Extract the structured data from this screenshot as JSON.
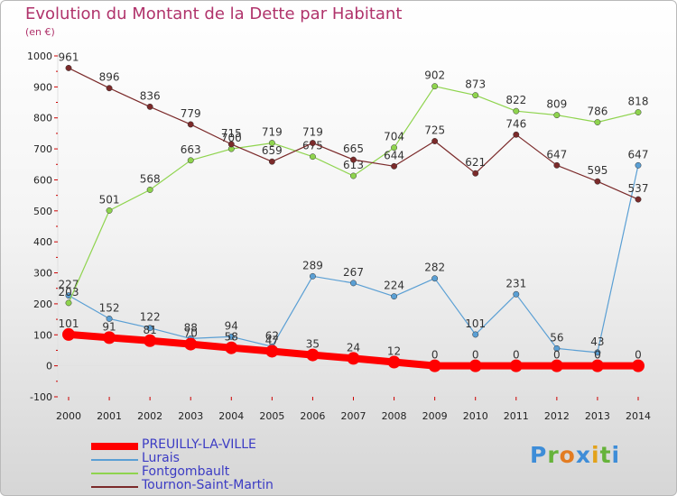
{
  "title": "Evolution du Montant de la Dette par Habitant",
  "unit": "(en €)",
  "brand": {
    "letters": [
      {
        "ch": "P",
        "color": "#3e8dd8"
      },
      {
        "ch": "r",
        "color": "#66b33a"
      },
      {
        "ch": "o",
        "color": "#e37c22"
      },
      {
        "ch": "x",
        "color": "#3e8dd8"
      },
      {
        "ch": "i",
        "color": "#e3a21a"
      },
      {
        "ch": "t",
        "color": "#66b33a"
      },
      {
        "ch": "i",
        "color": "#3e8dd8"
      }
    ]
  },
  "chart_data": {
    "type": "line",
    "title": "Evolution du Montant de la Dette par Habitant",
    "ylabel": "(en €)",
    "xlabel": "",
    "x": [
      "2000",
      "2001",
      "2002",
      "2003",
      "2004",
      "2005",
      "2006",
      "2007",
      "2008",
      "2009",
      "2010",
      "2011",
      "2012",
      "2013",
      "2014"
    ],
    "ylim": [
      -100,
      1000
    ],
    "yticks": [
      -100,
      0,
      100,
      200,
      300,
      400,
      500,
      600,
      700,
      800,
      900,
      1000
    ],
    "grid": false,
    "legend": "bottom-left",
    "series": [
      {
        "name": "PREUILLY-LA-VILLE",
        "color": "#ff0000",
        "emphasis": true,
        "values": [
          101,
          91,
          81,
          70,
          58,
          47,
          35,
          24,
          12,
          0,
          0,
          0,
          0,
          0,
          0
        ]
      },
      {
        "name": "Lurais",
        "color": "#5a9fd4",
        "emphasis": false,
        "values": [
          227,
          152,
          122,
          88,
          94,
          62,
          289,
          267,
          224,
          282,
          101,
          231,
          56,
          43,
          647
        ]
      },
      {
        "name": "Fontgombault",
        "color": "#8fd44e",
        "emphasis": false,
        "values": [
          203,
          501,
          568,
          663,
          700,
          719,
          675,
          613,
          704,
          902,
          873,
          822,
          809,
          786,
          818
        ]
      },
      {
        "name": "Tournon-Saint-Martin",
        "color": "#7b2a2a",
        "emphasis": false,
        "values": [
          961,
          896,
          836,
          779,
          715,
          659,
          719,
          665,
          644,
          725,
          621,
          746,
          647,
          595,
          537
        ]
      }
    ]
  }
}
